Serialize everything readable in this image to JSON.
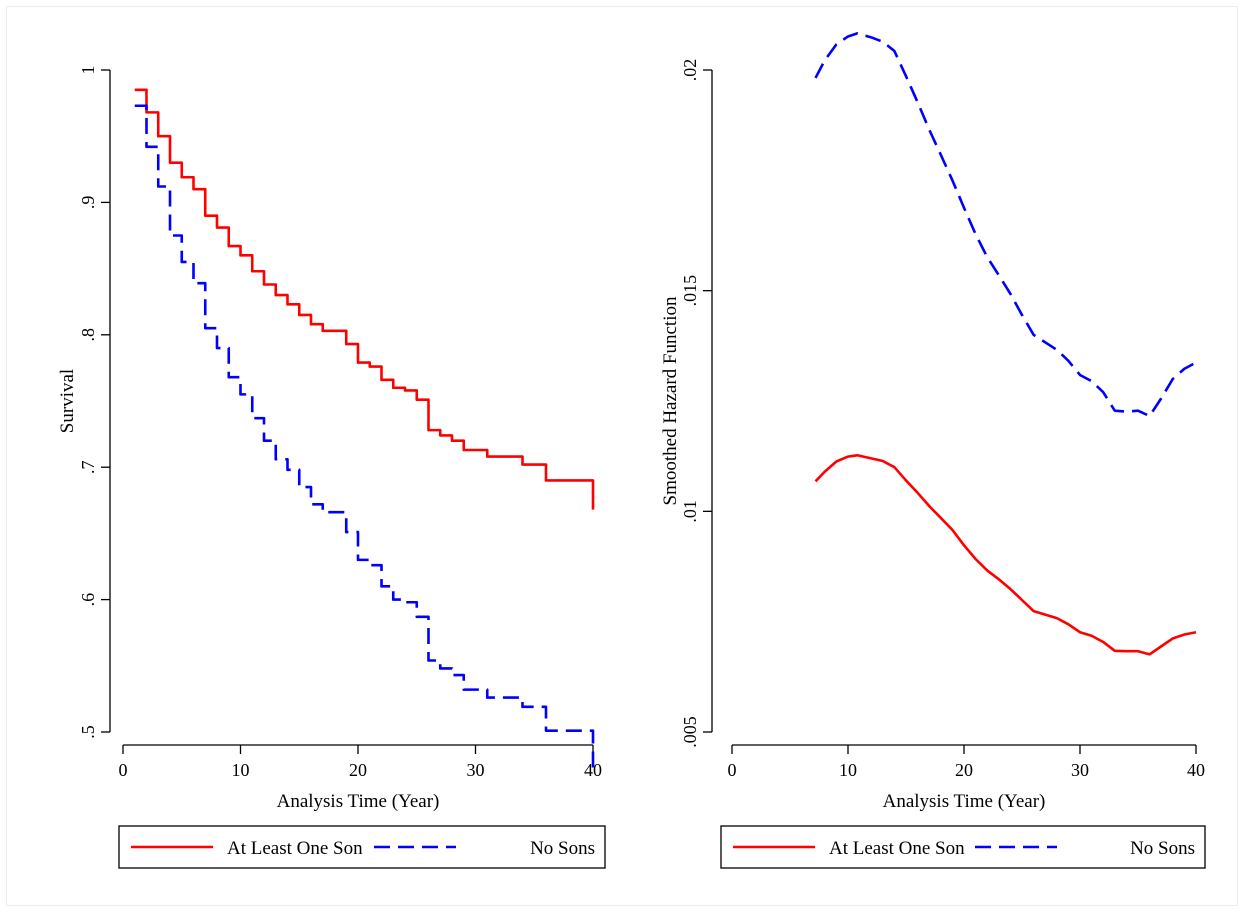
{
  "colors": {
    "son": "#ff0000",
    "nosons": "#0000ff",
    "axis": "#000000",
    "background": "#ffffff"
  },
  "chart_data": [
    {
      "type": "line",
      "panel": "left",
      "step": true,
      "title": "",
      "xlabel": "Analysis Time (Year)",
      "ylabel": "Survival",
      "xlim": [
        0,
        40
      ],
      "ylim": [
        0.5,
        1
      ],
      "xticks": [
        0,
        10,
        20,
        30,
        40
      ],
      "xtick_labels": [
        "0",
        "10",
        "20",
        "30",
        "40"
      ],
      "yticks": [
        0.5,
        0.6,
        0.7,
        0.8,
        0.9,
        1
      ],
      "ytick_labels": [
        ".5",
        ".6",
        ".7",
        ".8",
        ".9",
        "1"
      ],
      "grid": false,
      "legend": {
        "position": "bottom",
        "entries": [
          "At Least One Son",
          "No Sons"
        ]
      },
      "series": [
        {
          "name": "At Least One Son",
          "color": "#ff0000",
          "dash": "solid",
          "points": [
            [
              1,
              0.985
            ],
            [
              2,
              0.968
            ],
            [
              3,
              0.95
            ],
            [
              4,
              0.93
            ],
            [
              5,
              0.919
            ],
            [
              6,
              0.91
            ],
            [
              7,
              0.89
            ],
            [
              8,
              0.881
            ],
            [
              9,
              0.867
            ],
            [
              10,
              0.86
            ],
            [
              11,
              0.848
            ],
            [
              12,
              0.838
            ],
            [
              13,
              0.83
            ],
            [
              14,
              0.823
            ],
            [
              15,
              0.815
            ],
            [
              16,
              0.808
            ],
            [
              17,
              0.803
            ],
            [
              18,
              0.803
            ],
            [
              19,
              0.793
            ],
            [
              20,
              0.779
            ],
            [
              21,
              0.776
            ],
            [
              22,
              0.766
            ],
            [
              23,
              0.76
            ],
            [
              24,
              0.758
            ],
            [
              25,
              0.751
            ],
            [
              26,
              0.728
            ],
            [
              27,
              0.724
            ],
            [
              28,
              0.72
            ],
            [
              29,
              0.713
            ],
            [
              30,
              0.713
            ],
            [
              31,
              0.708
            ],
            [
              32,
              0.708
            ],
            [
              33,
              0.708
            ],
            [
              34,
              0.702
            ],
            [
              35,
              0.702
            ],
            [
              36,
              0.69
            ],
            [
              37,
              0.69
            ],
            [
              38,
              0.69
            ],
            [
              39,
              0.69
            ],
            [
              40,
              0.668
            ]
          ]
        },
        {
          "name": "No Sons",
          "color": "#0000ff",
          "dash": "dashed",
          "points": [
            [
              1,
              0.973
            ],
            [
              2,
              0.942
            ],
            [
              3,
              0.912
            ],
            [
              4,
              0.875
            ],
            [
              5,
              0.855
            ],
            [
              6,
              0.839
            ],
            [
              7,
              0.805
            ],
            [
              8,
              0.79
            ],
            [
              9,
              0.768
            ],
            [
              10,
              0.755
            ],
            [
              11,
              0.737
            ],
            [
              12,
              0.72
            ],
            [
              13,
              0.706
            ],
            [
              14,
              0.698
            ],
            [
              15,
              0.685
            ],
            [
              16,
              0.672
            ],
            [
              17,
              0.666
            ],
            [
              18,
              0.666
            ],
            [
              19,
              0.651
            ],
            [
              20,
              0.63
            ],
            [
              21,
              0.626
            ],
            [
              22,
              0.61
            ],
            [
              23,
              0.6
            ],
            [
              24,
              0.598
            ],
            [
              25,
              0.587
            ],
            [
              26,
              0.554
            ],
            [
              27,
              0.548
            ],
            [
              28,
              0.543
            ],
            [
              29,
              0.532
            ],
            [
              30,
              0.532
            ],
            [
              31,
              0.526
            ],
            [
              32,
              0.526
            ],
            [
              33,
              0.526
            ],
            [
              34,
              0.519
            ],
            [
              35,
              0.519
            ],
            [
              36,
              0.501
            ],
            [
              37,
              0.501
            ],
            [
              38,
              0.501
            ],
            [
              39,
              0.501
            ],
            [
              40,
              0.473
            ]
          ]
        }
      ]
    },
    {
      "type": "line",
      "panel": "right",
      "step": false,
      "title": "",
      "xlabel": "Analysis Time (Year)",
      "ylabel": "Smoothed Hazard Function",
      "xlim": [
        0,
        40
      ],
      "ylim": [
        0.005,
        0.02
      ],
      "xticks": [
        0,
        10,
        20,
        30,
        40
      ],
      "xtick_labels": [
        "0",
        "10",
        "20",
        "30",
        "40"
      ],
      "yticks": [
        0.005,
        0.01,
        0.015,
        0.02
      ],
      "ytick_labels": [
        ".005",
        ".01",
        ".015",
        ".02"
      ],
      "grid": false,
      "legend": {
        "position": "bottom",
        "entries": [
          "At Least One Son",
          "No Sons"
        ]
      },
      "series": [
        {
          "name": "At Least One Son",
          "color": "#ff0000",
          "dash": "solid",
          "points": [
            [
              7.2,
              0.01068
            ],
            [
              8,
              0.0109
            ],
            [
              9,
              0.01113
            ],
            [
              10,
              0.01124
            ],
            [
              10.8,
              0.01127
            ],
            [
              12,
              0.0112
            ],
            [
              13,
              0.01114
            ],
            [
              14,
              0.011
            ],
            [
              15,
              0.0107
            ],
            [
              16,
              0.01042
            ],
            [
              17,
              0.01012
            ],
            [
              18,
              0.00985
            ],
            [
              19,
              0.00958
            ],
            [
              20,
              0.00923
            ],
            [
              21,
              0.00892
            ],
            [
              22,
              0.00866
            ],
            [
              23,
              0.00846
            ],
            [
              24,
              0.00824
            ],
            [
              25,
              0.00799
            ],
            [
              26,
              0.00774
            ],
            [
              27,
              0.00766
            ],
            [
              28,
              0.00758
            ],
            [
              29,
              0.00744
            ],
            [
              30,
              0.00726
            ],
            [
              31,
              0.00718
            ],
            [
              32,
              0.00704
            ],
            [
              33,
              0.00684
            ],
            [
              34,
              0.00683
            ],
            [
              35,
              0.00683
            ],
            [
              36,
              0.00676
            ],
            [
              37,
              0.00694
            ],
            [
              38,
              0.00712
            ],
            [
              39,
              0.00721
            ],
            [
              40,
              0.00726
            ]
          ]
        },
        {
          "name": "No Sons",
          "color": "#0000ff",
          "dash": "dashed",
          "points": [
            [
              7.2,
              0.01982
            ],
            [
              8,
              0.02022
            ],
            [
              9,
              0.02058
            ],
            [
              10,
              0.02076
            ],
            [
              10.8,
              0.02083
            ],
            [
              12,
              0.02074
            ],
            [
              13,
              0.02064
            ],
            [
              14,
              0.02043
            ],
            [
              15,
              0.01986
            ],
            [
              16,
              0.01927
            ],
            [
              17,
              0.01865
            ],
            [
              18,
              0.01808
            ],
            [
              19,
              0.0175
            ],
            [
              20,
              0.01688
            ],
            [
              21,
              0.01628
            ],
            [
              22,
              0.01576
            ],
            [
              23,
              0.01535
            ],
            [
              24,
              0.01493
            ],
            [
              25,
              0.01445
            ],
            [
              26,
              0.014
            ],
            [
              27,
              0.01383
            ],
            [
              28,
              0.01366
            ],
            [
              29,
              0.01341
            ],
            [
              30,
              0.01309
            ],
            [
              31,
              0.01295
            ],
            [
              32,
              0.0127
            ],
            [
              33,
              0.01228
            ],
            [
              34,
              0.01226
            ],
            [
              35,
              0.01228
            ],
            [
              36,
              0.01216
            ],
            [
              37,
              0.01256
            ],
            [
              38,
              0.013
            ],
            [
              39,
              0.01323
            ],
            [
              40,
              0.01337
            ]
          ]
        }
      ]
    }
  ]
}
